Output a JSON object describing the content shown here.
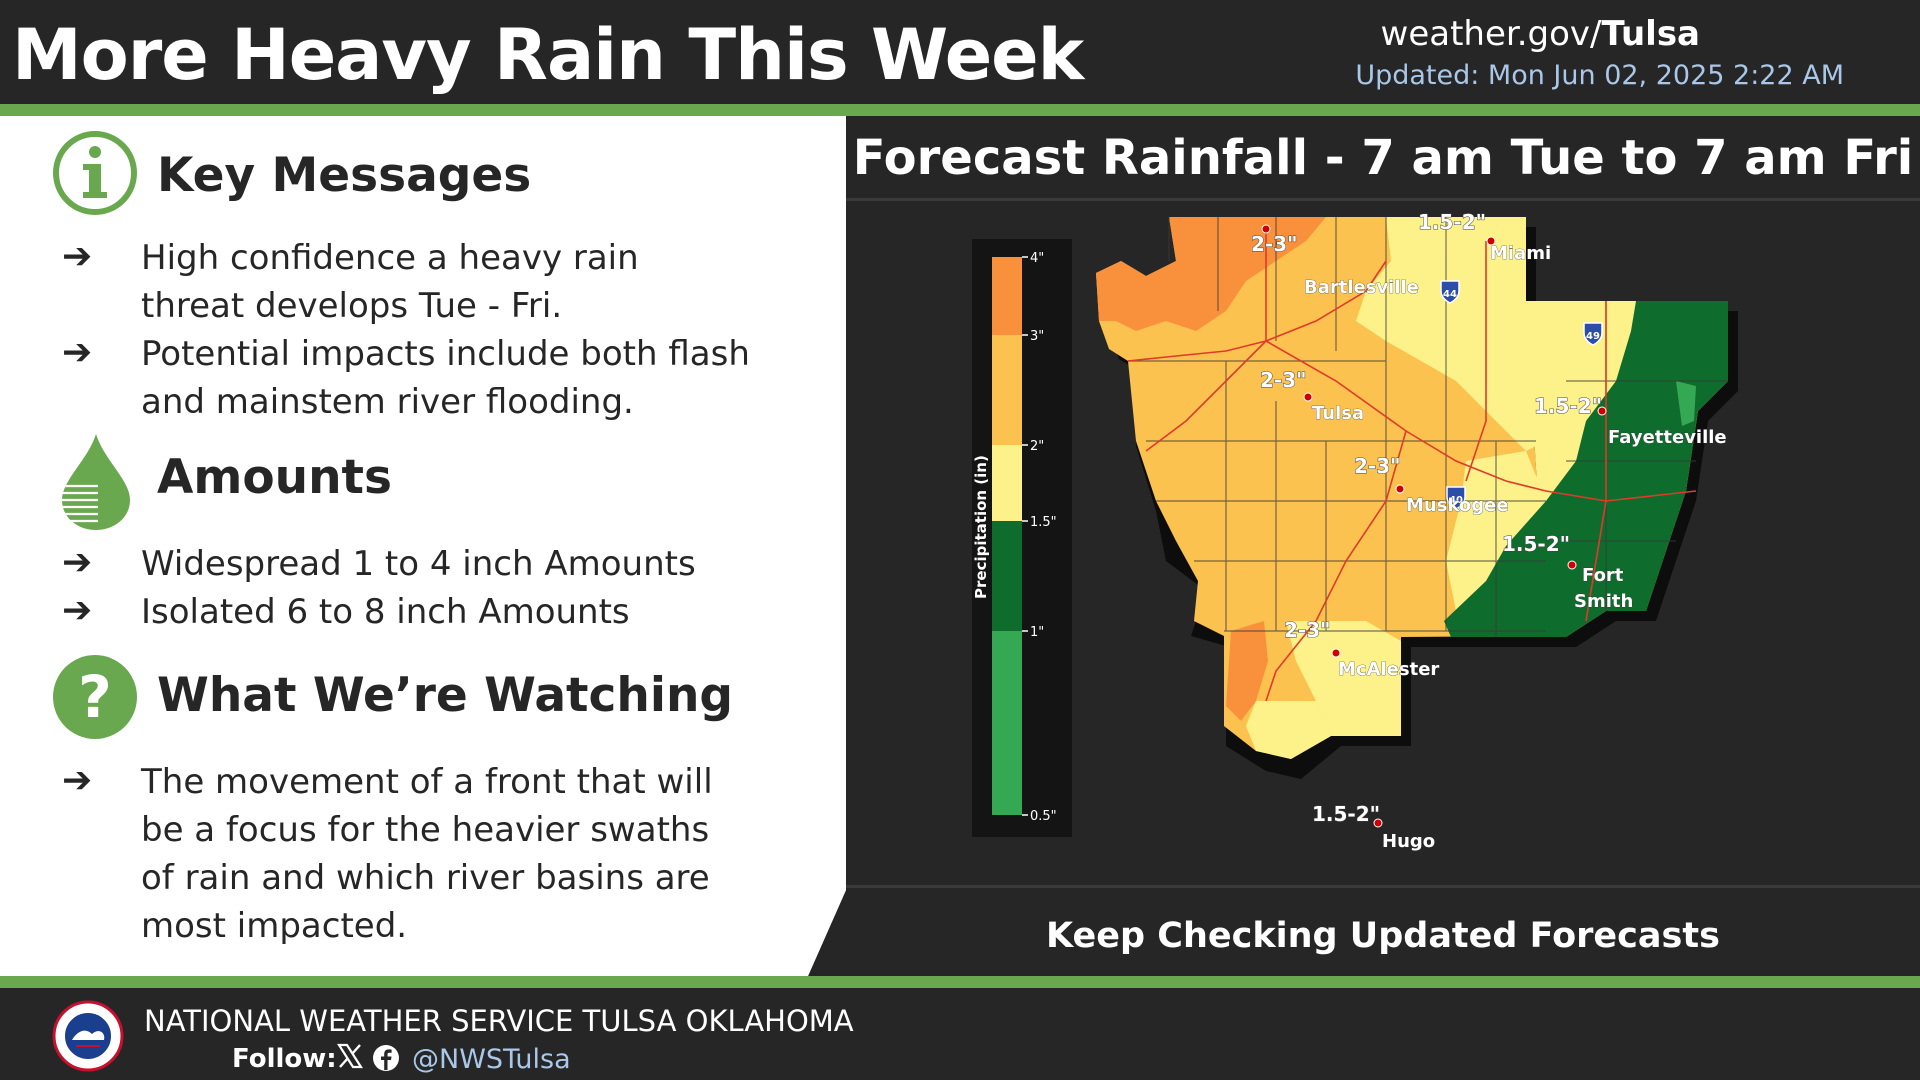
{
  "header": {
    "title": "More Heavy Rain This Week",
    "site_prefix": "weather.gov/",
    "site_office": "Tulsa",
    "updated": "Updated: Mon Jun 02, 2025 2:22 AM"
  },
  "sections": {
    "key_messages": {
      "heading": "Key Messages",
      "bullets": [
        "High confidence a heavy rain threat develops Tue - Fri.",
        "Potential impacts include both flash and mainstem river flooding."
      ]
    },
    "amounts": {
      "heading": "Amounts",
      "bullets": [
        "Widespread 1 to 4 inch Amounts",
        "Isolated 6 to 8 inch Amounts"
      ]
    },
    "watching": {
      "heading": "What We’re Watching",
      "bullets": [
        "The movement of a front that will be a focus for the heavier swaths of rain and which river basins are most impacted."
      ]
    },
    "arrow_glyph": "➔"
  },
  "map": {
    "title": "Forecast Rainfall - 7 am Tue to 7 am Fri",
    "legend": {
      "axis_label": "Precipitation (in)",
      "ticks": [
        "4\"",
        "3\"",
        "2\"",
        "1.5\"",
        "1\"",
        "0.5\""
      ],
      "colors": {
        "3-4": "#f9913c",
        "2-3": "#fcc24f",
        "1.5-2": "#fdf28a",
        "1-1.5": "#0e6d2c",
        "0.5-1": "#35a853"
      }
    },
    "cities": [
      "Bartlesville",
      "Miami",
      "Tulsa",
      "Fayetteville",
      "Muskogee",
      "Fort",
      "Smith",
      "McAlester",
      "Hugo"
    ],
    "amount_labels": [
      "2-3\"",
      "1.5-2\"",
      "2-3\"",
      "1.5-2\"",
      "2-3\"",
      "1.5-2\"",
      "2-3\"",
      "1.5-2\""
    ],
    "shields": [
      "44",
      "49",
      "40"
    ]
  },
  "footer_banner": "Keep Checking Updated Forecasts",
  "footer": {
    "org": "NATIONAL WEATHER SERVICE TULSA OKLAHOMA",
    "follow": "Follow:",
    "handle": "@NWSTulsa"
  },
  "colors": {
    "accent_green": "#6aa84f",
    "background": "#262626",
    "link_blue": "#a9c7e8"
  }
}
